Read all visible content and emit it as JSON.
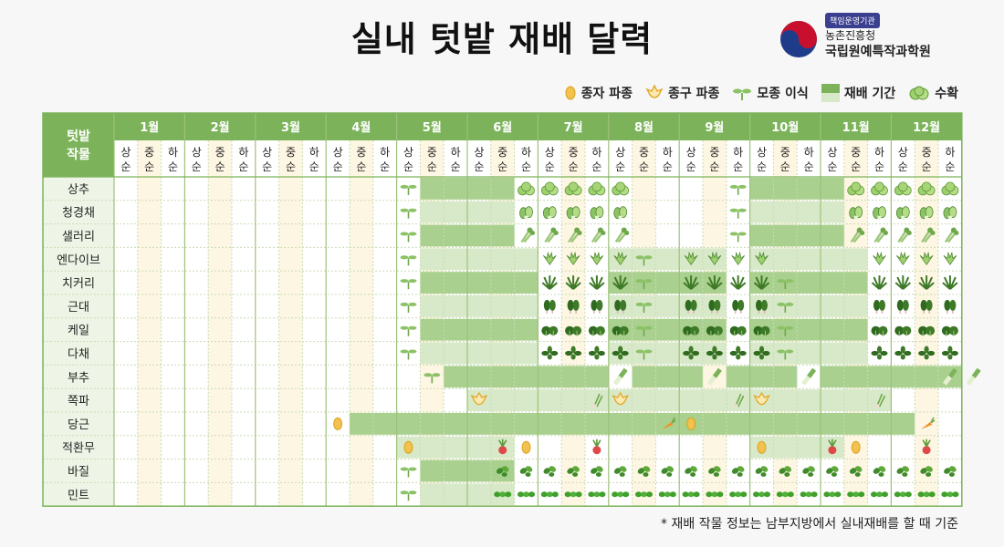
{
  "title": "실내 텃밭 재배 달력",
  "logo": {
    "badge": "책임운영기관",
    "line1": "농촌진흥청",
    "line2": "국립원예특작과학원"
  },
  "legend": [
    {
      "icon": "seed-icon",
      "label": "종자 파종"
    },
    {
      "icon": "bulb-icon",
      "label": "종구 파종"
    },
    {
      "icon": "seedling-icon",
      "label": "모종 이식"
    },
    {
      "icon": "period-swatch-icon",
      "label": "재배 기간"
    },
    {
      "icon": "harvest-icon",
      "label": "수확"
    }
  ],
  "header": {
    "crop_label": [
      "텃밭",
      "작물"
    ],
    "months": [
      "1월",
      "2월",
      "3월",
      "4월",
      "5월",
      "6월",
      "7월",
      "8월",
      "9월",
      "10월",
      "11월",
      "12월"
    ],
    "periods": [
      [
        "상",
        "순"
      ],
      [
        "중",
        "순"
      ],
      [
        "하",
        "순"
      ]
    ]
  },
  "colors": {
    "header_green": "#7cb35a",
    "dark_green": "#a9d08e",
    "light_green": "#d7e9c8",
    "yellow_cell": "#fdf6e2",
    "white_cell": "#ffffff",
    "grid": "#c9dcb5"
  },
  "crops": [
    {
      "name": "상추",
      "dark": [
        [
          13,
          16
        ],
        [
          27,
          30
        ]
      ],
      "light": [],
      "icons": {
        "12": "seedling",
        "17": "lettuce",
        "18": "lettuce",
        "19": "lettuce",
        "20": "lettuce",
        "21": "lettuce",
        "26": "seedling",
        "31": "lettuce",
        "32": "lettuce",
        "33": "lettuce",
        "34": "lettuce",
        "35": "lettuce"
      }
    },
    {
      "name": "청경채",
      "dark": [],
      "light": [
        [
          13,
          16
        ],
        [
          27,
          30
        ]
      ],
      "icons": {
        "12": "seedling",
        "17": "bokchoy",
        "18": "bokchoy",
        "19": "bokchoy",
        "20": "bokchoy",
        "21": "bokchoy",
        "26": "seedling",
        "31": "bokchoy",
        "32": "bokchoy",
        "33": "bokchoy",
        "34": "bokchoy",
        "35": "bokchoy"
      }
    },
    {
      "name": "샐러리",
      "dark": [
        [
          13,
          16
        ],
        [
          27,
          30
        ]
      ],
      "light": [],
      "icons": {
        "12": "seedling",
        "17": "celery",
        "18": "celery",
        "19": "celery",
        "20": "celery",
        "21": "celery",
        "26": "seedling",
        "31": "celery",
        "32": "celery",
        "33": "celery",
        "34": "celery",
        "35": "celery"
      }
    },
    {
      "name": "엔다이브",
      "dark": [],
      "light": [
        [
          13,
          17
        ],
        [
          21,
          25
        ],
        [
          27,
          31
        ]
      ],
      "icons": {
        "12": "seedling",
        "18": "endive",
        "19": "endive",
        "20": "endive",
        "21": "endive",
        "22": "seedling",
        "24": "endive",
        "25": "endive",
        "26": "endive",
        "27": "endive",
        "32": "endive",
        "33": "endive",
        "34": "endive",
        "35": "endive"
      }
    },
    {
      "name": "치커리",
      "dark": [
        [
          13,
          17
        ],
        [
          21,
          25
        ],
        [
          27,
          31
        ]
      ],
      "light": [],
      "icons": {
        "12": "seedling",
        "18": "chicory",
        "19": "chicory",
        "20": "chicory",
        "21": "chicory",
        "22": "seedling",
        "24": "chicory",
        "25": "chicory",
        "26": "chicory",
        "27": "chicory",
        "28": "seedling",
        "32": "chicory",
        "33": "chicory",
        "34": "chicory",
        "35": "chicory"
      }
    },
    {
      "name": "근대",
      "dark": [],
      "light": [
        [
          13,
          17
        ],
        [
          21,
          25
        ],
        [
          27,
          31
        ]
      ],
      "icons": {
        "12": "seedling",
        "18": "chard",
        "19": "chard",
        "20": "chard",
        "21": "chard",
        "22": "seedling",
        "24": "chard",
        "25": "chard",
        "26": "chard",
        "27": "chard",
        "28": "seedling",
        "32": "chard",
        "33": "chard",
        "34": "chard",
        "35": "chard"
      }
    },
    {
      "name": "케일",
      "dark": [
        [
          13,
          17
        ],
        [
          21,
          25
        ],
        [
          27,
          31
        ]
      ],
      "light": [],
      "icons": {
        "12": "seedling",
        "18": "kale",
        "19": "kale",
        "20": "kale",
        "21": "kale",
        "22": "seedling",
        "24": "kale",
        "25": "kale",
        "26": "kale",
        "27": "kale",
        "28": "seedling",
        "32": "kale",
        "33": "kale",
        "34": "kale",
        "35": "kale"
      }
    },
    {
      "name": "다채",
      "dark": [],
      "light": [
        [
          13,
          17
        ],
        [
          21,
          25
        ],
        [
          27,
          31
        ]
      ],
      "icons": {
        "12": "seedling",
        "18": "tatsoi",
        "19": "tatsoi",
        "20": "tatsoi",
        "21": "tatsoi",
        "22": "seedling",
        "24": "tatsoi",
        "25": "tatsoi",
        "26": "tatsoi",
        "27": "tatsoi",
        "28": "seedling",
        "32": "tatsoi",
        "33": "tatsoi",
        "34": "tatsoi",
        "35": "tatsoi"
      }
    },
    {
      "name": "부추",
      "dark": [
        [
          14,
          20
        ],
        [
          22,
          24
        ],
        [
          26,
          28
        ],
        [
          30,
          35
        ]
      ],
      "light": [],
      "icons": {
        "13": "seedling",
        "21": "leek",
        "25": "leek",
        "29": "leek",
        "35": "leek",
        "36": "leek"
      }
    },
    {
      "name": "쪽파",
      "dark": [],
      "light": [
        [
          15,
          32
        ]
      ],
      "icons": {
        "15": "bulb",
        "20": "scallion",
        "21": "bulb",
        "26": "scallion",
        "27": "bulb",
        "32": "scallion"
      }
    },
    {
      "name": "당근",
      "dark": [
        [
          10,
          22
        ],
        [
          23,
          33
        ]
      ],
      "light": [],
      "icons": {
        "9": "seed",
        "23": "carrot",
        "24": "seed",
        "34": "carrot"
      }
    },
    {
      "name": "적환무",
      "dark": [],
      "light": [
        [
          12,
          16
        ],
        [
          27,
          30
        ]
      ],
      "icons": {
        "12": "seed",
        "16": "radish",
        "17": "seed",
        "20": "radish",
        "27": "seed",
        "30": "radish",
        "31": "seed",
        "34": "radish"
      }
    },
    {
      "name": "바질",
      "dark": [
        [
          13,
          16
        ]
      ],
      "light": [],
      "icons": {
        "12": "seedling",
        "16": "basil",
        "17": "basil",
        "18": "basil",
        "19": "basil",
        "20": "basil",
        "21": "basil",
        "22": "basil",
        "23": "basil",
        "24": "basil",
        "25": "basil",
        "26": "basil",
        "27": "basil",
        "28": "basil",
        "29": "basil",
        "30": "basil",
        "31": "basil",
        "32": "basil",
        "33": "basil",
        "34": "basil",
        "35": "basil"
      }
    },
    {
      "name": "민트",
      "dark": [],
      "light": [
        [
          13,
          16
        ]
      ],
      "icons": {
        "12": "seedling",
        "16": "mint",
        "17": "mint",
        "18": "mint",
        "19": "mint",
        "20": "mint",
        "21": "mint",
        "22": "mint",
        "23": "mint",
        "24": "mint",
        "25": "mint",
        "26": "mint",
        "27": "mint",
        "28": "mint",
        "29": "mint",
        "30": "mint",
        "31": "mint",
        "32": "mint",
        "33": "mint",
        "34": "mint",
        "35": "mint"
      }
    }
  ],
  "footnote": "*  재배 작물 정보는 남부지방에서 실내재배를 할 때 기준"
}
